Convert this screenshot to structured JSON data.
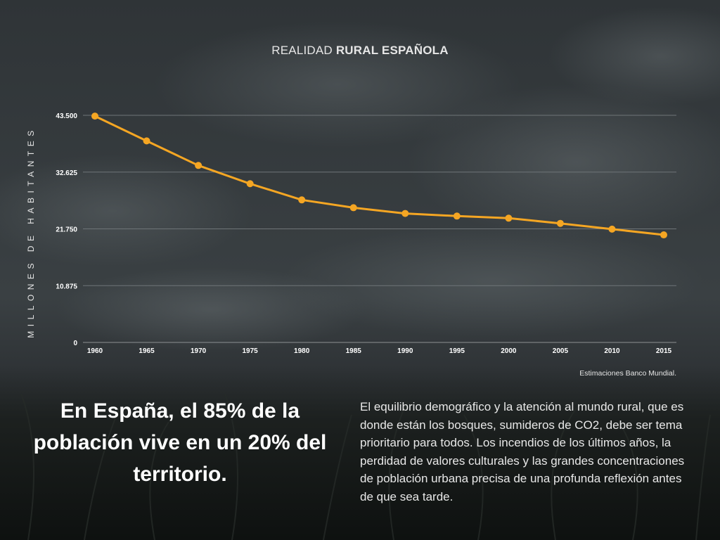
{
  "header": {
    "title_light": "REALIDAD",
    "title_bold": "RURAL ESPAÑOLA"
  },
  "chart_data": {
    "type": "line",
    "ylabel": "MILLONES DE HABITANTES",
    "xlabel": "",
    "ylim": [
      0,
      43500
    ],
    "yticks": [
      0,
      10875,
      21750,
      32625,
      43500
    ],
    "ytick_labels": [
      "0",
      "10.875",
      "21.750",
      "32.625",
      "43.500"
    ],
    "categories": [
      "1960",
      "1965",
      "1970",
      "1975",
      "1980",
      "1985",
      "1990",
      "1995",
      "2000",
      "2005",
      "2010",
      "2015"
    ],
    "series": [
      {
        "values": [
          43350,
          38600,
          33900,
          30400,
          27300,
          25800,
          24700,
          24200,
          23800,
          22800,
          21700,
          20600
        ]
      }
    ],
    "grid": true,
    "line_color": "#f5a623",
    "source": "Estimaciones Banco Mundial."
  },
  "headline": "En España, el 85% de la población vive en un 20% del territorio.",
  "body": "El equilibrio demográfico y la atención al mundo rural, que es donde están los bosques, sumideros de CO2, debe ser tema prioritario para todos. Los incendios de los últimos años, la perdidad de valores culturales y las grandes concentraciones de población urbana precisa de una profunda reflexión antes de que sea tarde."
}
